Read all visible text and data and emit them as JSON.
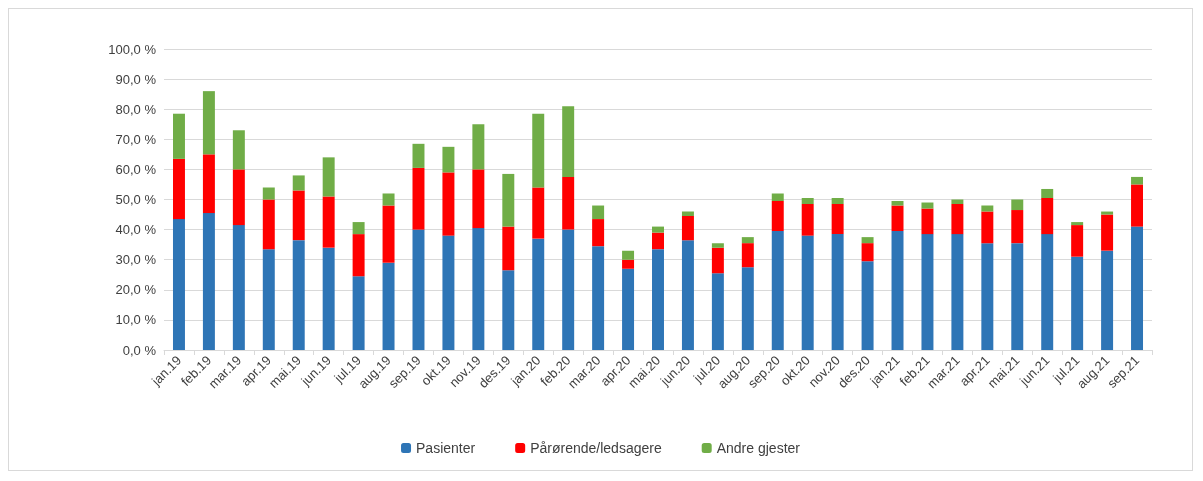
{
  "chart_data": {
    "type": "bar",
    "stacked": true,
    "categories": [
      "jan.19",
      "feb.19",
      "mar.19",
      "apr.19",
      "mai.19",
      "jun.19",
      "jul.19",
      "aug.19",
      "sep.19",
      "okt.19",
      "nov.19",
      "des.19",
      "jan.20",
      "feb.20",
      "mar.20",
      "apr.20",
      "mai.20",
      "jun.20",
      "jul.20",
      "aug.20",
      "sep.20",
      "okt.20",
      "nov.20",
      "des.20",
      "jan.21",
      "feb.21",
      "mar.21",
      "apr.21",
      "mai.21",
      "jun.21",
      "jul.21",
      "aug.21",
      "sep.21"
    ],
    "series": [
      {
        "name": "Pasienter",
        "color": "#2e75b6",
        "values": [
          43.5,
          45.5,
          41.5,
          33.5,
          36.5,
          34,
          24.5,
          29,
          40,
          38,
          40.5,
          26.5,
          37,
          40,
          34.5,
          27,
          33.5,
          36.5,
          25.5,
          27.5,
          39.5,
          38,
          38.5,
          29.5,
          39.5,
          38.5,
          38.5,
          35.5,
          35.5,
          38.5,
          31,
          33,
          41
        ]
      },
      {
        "name": "Pårørende/ledsagere",
        "color": "#ff0000",
        "values": [
          20,
          19.5,
          18.5,
          16.5,
          16.5,
          17,
          14,
          19,
          20.5,
          21,
          19.5,
          14.5,
          17,
          17.5,
          9,
          3,
          5.5,
          8,
          8.5,
          8,
          10,
          10.5,
          10,
          6,
          8.5,
          8.5,
          10,
          10.5,
          11,
          12,
          10.5,
          12,
          14
        ]
      },
      {
        "name": "Andre gjester",
        "color": "#70ad47",
        "values": [
          15,
          21,
          13,
          4,
          5,
          13,
          4,
          4,
          8,
          8.5,
          15,
          17.5,
          24.5,
          23.5,
          4.5,
          3,
          2,
          1.5,
          1.5,
          2,
          2.5,
          2,
          2,
          2,
          1.5,
          2,
          1.5,
          2,
          3.5,
          3,
          1,
          1,
          2.5
        ]
      }
    ],
    "ylim": [
      0,
      100
    ],
    "yticks": [
      {
        "value": 0,
        "label": "0,0 %"
      },
      {
        "value": 10,
        "label": "10,0 %"
      },
      {
        "value": 20,
        "label": "20,0 %"
      },
      {
        "value": 30,
        "label": "30,0 %"
      },
      {
        "value": 40,
        "label": "40,0 %"
      },
      {
        "value": 50,
        "label": "50,0 %"
      },
      {
        "value": 60,
        "label": "60,0 %"
      },
      {
        "value": 70,
        "label": "70,0 %"
      },
      {
        "value": 80,
        "label": "80,0 %"
      },
      {
        "value": 90,
        "label": "90,0 %"
      },
      {
        "value": 100,
        "label": "100,0 %"
      }
    ],
    "grid": "y",
    "legend": "bottom"
  }
}
